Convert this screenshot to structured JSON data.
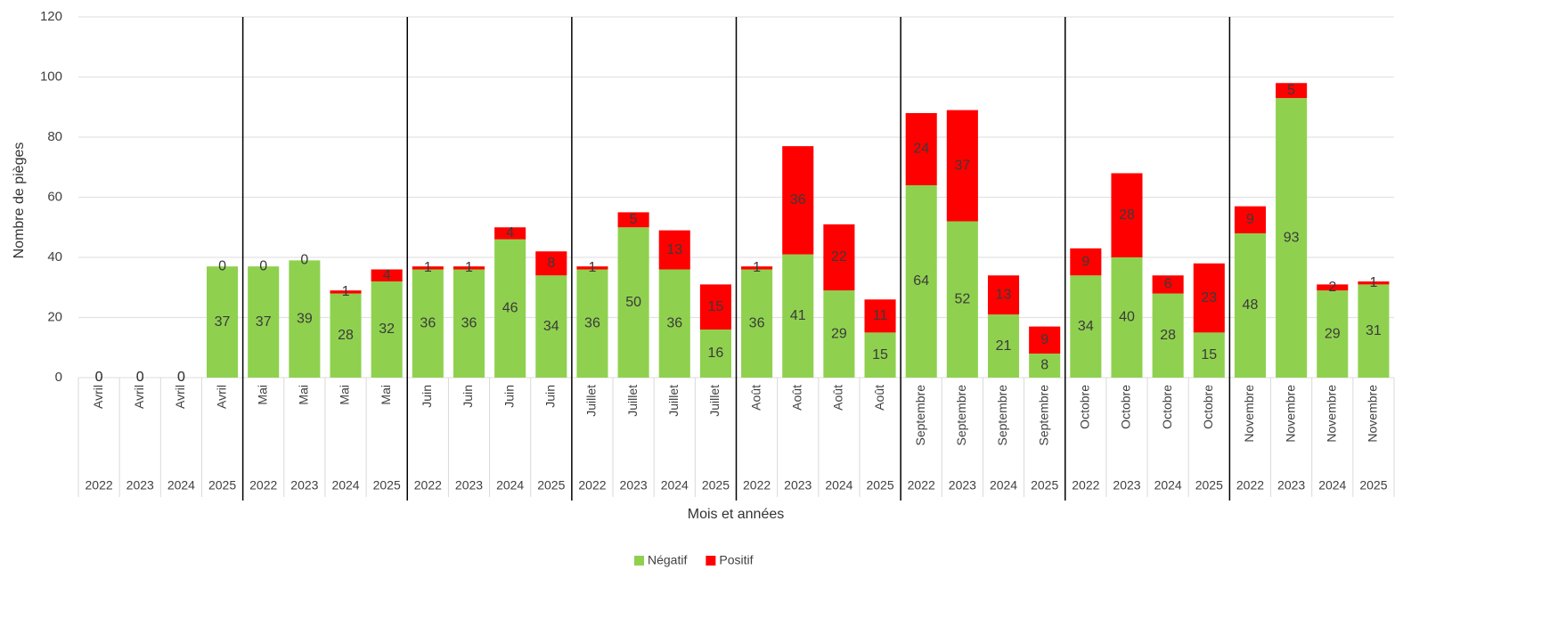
{
  "chart_data": {
    "type": "stacked_bar",
    "x_label": "Mois et années",
    "y_label": "Nombre de pièges",
    "categories": [
      "Avril",
      "Avril",
      "Avril",
      "Avril",
      "Mai",
      "Mai",
      "Mai",
      "Mai",
      "Juin",
      "Juin",
      "Juin",
      "Juin",
      "Juillet",
      "Juillet",
      "Juillet",
      "Juillet",
      "Août",
      "Août",
      "Août",
      "Août",
      "Septembre",
      "Septembre",
      "Septembre",
      "Septembre",
      "Octobre",
      "Octobre",
      "Octobre",
      "Octobre",
      "Novembre",
      "Novembre",
      "Novembre",
      "Novembre"
    ],
    "years": [
      "2022",
      "2023",
      "2024",
      "2025",
      "2022",
      "2023",
      "2024",
      "2025",
      "2022",
      "2023",
      "2024",
      "2025",
      "2022",
      "2023",
      "2024",
      "2025",
      "2022",
      "2023",
      "2024",
      "2025",
      "2022",
      "2023",
      "2024",
      "2025",
      "2022",
      "2023",
      "2024",
      "2025",
      "2022",
      "2023",
      "2024",
      "2025"
    ],
    "series": [
      {
        "name": "Négatif",
        "color": "#8fd14f",
        "values": [
          0,
          0,
          0,
          37,
          37,
          39,
          28,
          32,
          36,
          36,
          46,
          34,
          36,
          50,
          36,
          16,
          36,
          41,
          29,
          15,
          64,
          52,
          21,
          8,
          34,
          40,
          28,
          15,
          48,
          93,
          29,
          31
        ]
      },
      {
        "name": "Positif",
        "color": "#ff0000",
        "values": [
          0,
          0,
          0,
          0,
          0,
          0,
          1,
          4,
          1,
          1,
          4,
          8,
          1,
          5,
          13,
          15,
          1,
          36,
          22,
          11,
          24,
          37,
          13,
          9,
          9,
          28,
          6,
          23,
          9,
          5,
          2,
          1
        ]
      }
    ],
    "ylim": [
      0,
      120
    ],
    "yticks": [
      0,
      20,
      40,
      60,
      80,
      100,
      120
    ],
    "grid": true,
    "legend": "bottom"
  }
}
